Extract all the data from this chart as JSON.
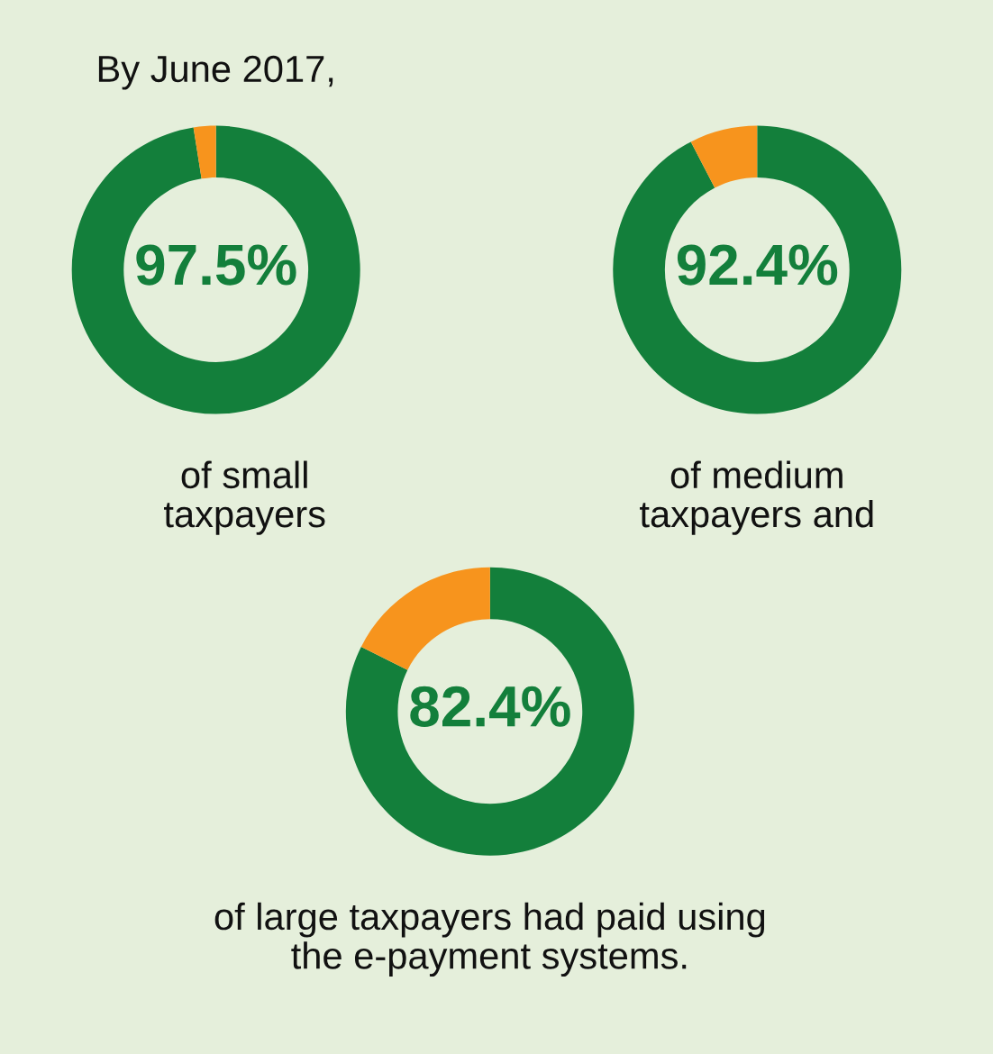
{
  "chart_data": [
    {
      "type": "donut",
      "title": "By June 2017,",
      "categories": [
        null,
        null
      ],
      "values": [
        97.5,
        2.5
      ],
      "colors": [
        "#137f3b",
        "#f7941d"
      ],
      "value_labels": [
        "97.5%",
        null
      ],
      "annotations": [
        "of small\ntaxpayers"
      ]
    },
    {
      "type": "donut",
      "categories": [
        null,
        null
      ],
      "values": [
        92.4,
        7.6
      ],
      "colors": [
        "#137f3b",
        "#f7941d"
      ],
      "value_labels": [
        "92.4%",
        null
      ],
      "annotations": [
        "of medium\ntaxpayers and"
      ]
    },
    {
      "type": "donut",
      "categories": [
        null,
        null
      ],
      "values": [
        82.4,
        17.6
      ],
      "colors": [
        "#137f3b",
        "#f7941d"
      ],
      "value_labels": [
        "82.4%",
        null
      ],
      "annotations": [
        "of large taxpayers had paid using\nthe e-payment systems."
      ]
    }
  ]
}
